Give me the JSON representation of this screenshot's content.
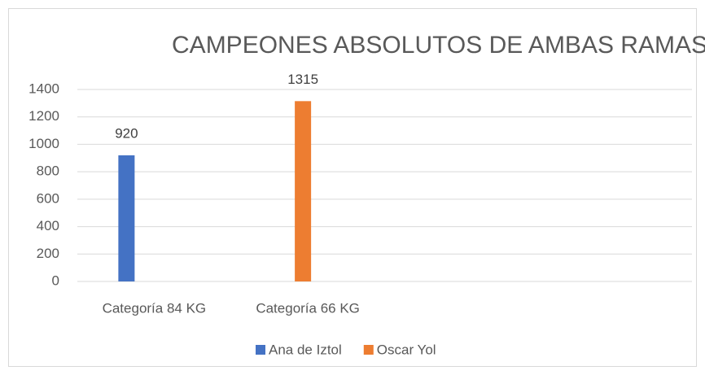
{
  "chart_data": {
    "type": "bar",
    "title": "CAMPEONES ABSOLUTOS DE AMBAS RAMAS",
    "categories": [
      "Categoría 84 KG",
      "Categoría 66 KG",
      null,
      null
    ],
    "series": [
      {
        "name": "Ana de Iztol",
        "color": "#4472c4",
        "values": [
          920,
          null,
          null,
          null
        ]
      },
      {
        "name": "Oscar Yol",
        "color": "#ed7d31",
        "values": [
          null,
          1315,
          null,
          null
        ]
      }
    ],
    "ylim": [
      0,
      1400
    ],
    "yticks": [
      0,
      200,
      400,
      600,
      800,
      1000,
      1200,
      1400
    ],
    "grid": true,
    "legend": "bottom"
  }
}
